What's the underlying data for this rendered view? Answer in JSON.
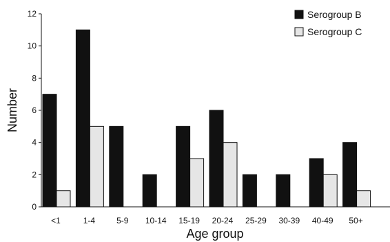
{
  "chart_data": {
    "type": "bar",
    "categories": [
      "<1",
      "1-4",
      "5-9",
      "10-14",
      "15-19",
      "20-24",
      "25-29",
      "30-39",
      "40-49",
      "50+"
    ],
    "series": [
      {
        "name": "Serogroup B",
        "values": [
          7,
          11,
          5,
          2,
          5,
          6,
          2,
          2,
          3,
          4
        ],
        "color": "#111111"
      },
      {
        "name": "Serogroup C",
        "values": [
          1,
          5,
          0,
          0,
          3,
          4,
          0,
          0,
          2,
          1
        ],
        "color": "#e6e6e6"
      }
    ],
    "xlabel": "Age group",
    "ylabel": "Number",
    "ylim": [
      0,
      12
    ],
    "yticks": [
      0,
      2,
      4,
      6,
      8,
      10,
      12
    ],
    "grid": false,
    "legend_position": "top-right"
  }
}
